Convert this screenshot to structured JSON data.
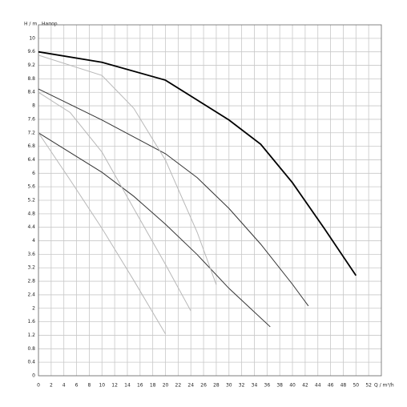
{
  "chart_data": {
    "type": "line",
    "y_label": "H / m",
    "y_title": "Напор",
    "x_label": "Q / m³/h",
    "xlim": [
      0,
      54
    ],
    "ylim": [
      0,
      10.4
    ],
    "xticks": [
      0,
      2,
      4,
      6,
      8,
      10,
      12,
      14,
      16,
      18,
      20,
      22,
      24,
      26,
      28,
      30,
      32,
      34,
      36,
      38,
      40,
      42,
      44,
      46,
      48,
      50,
      52
    ],
    "yticks": [
      0,
      0.4,
      0.8,
      1.2,
      1.6,
      2,
      2.4,
      2.8,
      3.2,
      3.6,
      4,
      4.4,
      4.8,
      5.2,
      5.6,
      6,
      6.4,
      6.8,
      7.2,
      7.6,
      8,
      8.4,
      8.8,
      9.2,
      9.6,
      10
    ],
    "grid": true,
    "series": [
      {
        "color": "#000000",
        "width": 1.8,
        "x": [
          0,
          10,
          20,
          25,
          30,
          35,
          40,
          45,
          50
        ],
        "values": [
          9.6,
          9.29,
          8.76,
          8.17,
          7.58,
          6.86,
          5.72,
          4.37,
          2.97
        ]
      },
      {
        "color": "#333333",
        "width": 1,
        "x": [
          0,
          10,
          20,
          25,
          30,
          35,
          40,
          42.5
        ],
        "values": [
          8.5,
          7.58,
          6.58,
          5.87,
          4.96,
          3.9,
          2.71,
          2.07
        ]
      },
      {
        "color": "#333333",
        "width": 1,
        "x": [
          0,
          10,
          15,
          20,
          25,
          30,
          36.5
        ],
        "values": [
          7.2,
          6.03,
          5.32,
          4.49,
          3.59,
          2.59,
          1.45
        ]
      },
      {
        "color": "#b8b8b8",
        "width": 1,
        "x": [
          0,
          10,
          15,
          20,
          25,
          28
        ],
        "values": [
          9.5,
          8.9,
          7.93,
          6.39,
          4.25,
          2.7
        ]
      },
      {
        "color": "#b8b8b8",
        "width": 1,
        "x": [
          0,
          5,
          10,
          15,
          20,
          24
        ],
        "values": [
          8.4,
          7.8,
          6.63,
          4.96,
          3.3,
          1.92
        ]
      },
      {
        "color": "#b8b8b8",
        "width": 1,
        "x": [
          0,
          5,
          10,
          15,
          20
        ],
        "values": [
          7.2,
          5.8,
          4.37,
          2.83,
          1.24
        ]
      }
    ]
  }
}
